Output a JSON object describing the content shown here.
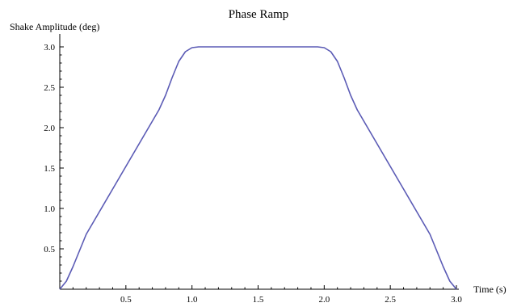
{
  "chart_data": {
    "type": "line",
    "title": "Phase Ramp",
    "xlabel": "Time (s)",
    "ylabel": "Shake Amplitude (deg)",
    "xlim": [
      0,
      3.0
    ],
    "ylim": [
      0,
      3.0
    ],
    "grid": false,
    "legend": "none",
    "x_ticks": [
      {
        "value": 0.5,
        "label": "0.5"
      },
      {
        "value": 1.0,
        "label": "1.0"
      },
      {
        "value": 1.5,
        "label": "1.5"
      },
      {
        "value": 2.0,
        "label": "2.0"
      },
      {
        "value": 2.5,
        "label": "2.5"
      },
      {
        "value": 3.0,
        "label": "3.0"
      }
    ],
    "y_ticks": [
      {
        "value": 0.5,
        "label": "0.5"
      },
      {
        "value": 1.0,
        "label": "1.0"
      },
      {
        "value": 1.5,
        "label": "1.5"
      },
      {
        "value": 2.0,
        "label": "2.0"
      },
      {
        "value": 2.5,
        "label": "2.5"
      },
      {
        "value": 3.0,
        "label": "3.0"
      }
    ],
    "series": [
      {
        "color": "#5b5bb5",
        "x": [
          0,
          0.05,
          0.1,
          0.15,
          0.2,
          0.25,
          0.3,
          0.4,
          0.5,
          0.6,
          0.7,
          0.75,
          0.8,
          0.85,
          0.9,
          0.95,
          1.0,
          1.05,
          1.5,
          1.95,
          2.0,
          2.05,
          2.1,
          2.15,
          2.2,
          2.25,
          2.3,
          2.4,
          2.5,
          2.6,
          2.7,
          2.75,
          2.8,
          2.85,
          2.9,
          2.95,
          3.0
        ],
        "y": [
          0,
          0.1,
          0.28,
          0.48,
          0.68,
          0.82,
          0.96,
          1.24,
          1.52,
          1.8,
          2.08,
          2.22,
          2.4,
          2.62,
          2.82,
          2.94,
          2.99,
          3.0,
          3.0,
          3.0,
          2.99,
          2.94,
          2.82,
          2.62,
          2.4,
          2.22,
          2.08,
          1.8,
          1.52,
          1.24,
          0.96,
          0.82,
          0.68,
          0.48,
          0.28,
          0.1,
          0
        ]
      }
    ]
  }
}
